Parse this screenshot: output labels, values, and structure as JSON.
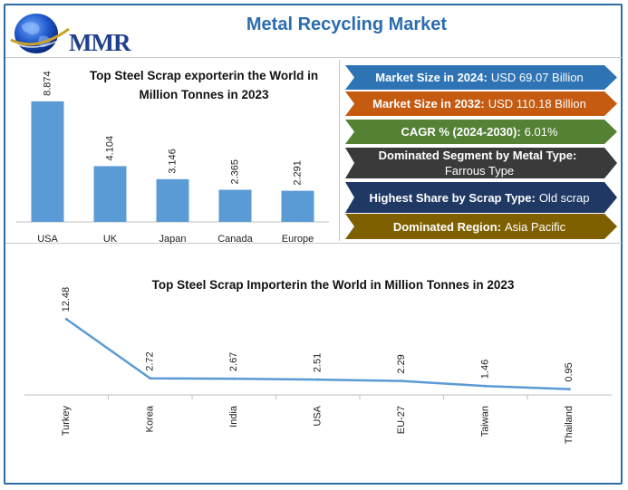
{
  "brand": {
    "logo_text": "MMR"
  },
  "title": "Metal Recycling Market",
  "stats": [
    {
      "label": "Market Size in 2024:",
      "value": "USD 69.07 Billion",
      "color": "#2e74b5"
    },
    {
      "label": "Market Size in 2032:",
      "value": "USD 110.18 Billion",
      "color": "#c55a11"
    },
    {
      "label": "CAGR % (2024-2030):",
      "value": "6.01%",
      "color": "#548235"
    },
    {
      "label": "Dominated Segment by Metal Type:",
      "value": "Farrous Type",
      "color": "#3a3a3a"
    },
    {
      "label": "Highest Share by Scrap Type:",
      "value": "Old scrap",
      "color": "#1f3864"
    },
    {
      "label": "Dominated Region:",
      "value": "Asia Pacific",
      "color": "#7f6000"
    }
  ],
  "chart_data": [
    {
      "type": "bar",
      "title_line1": "Top Steel Scrap exporterin the World in",
      "title_line2": "Million Tonnes in 2023",
      "categories": [
        "USA",
        "UK",
        "Japan",
        "Canada",
        "Europe"
      ],
      "values": [
        8.874,
        4.104,
        3.146,
        2.365,
        2.291
      ],
      "value_labels": [
        "8.874",
        "4.104",
        "3.146",
        "2.365",
        "2.291"
      ],
      "color": "#5b9bd5",
      "ylim": [
        0,
        10
      ],
      "grid": false,
      "xlabel": "",
      "ylabel": ""
    },
    {
      "type": "line",
      "title": "Top Steel Scrap Importerin the World in Million Tonnes in 2023",
      "categories": [
        "Turkey",
        "Korea",
        "India",
        "USA",
        "EU-27",
        "Taiwan",
        "Thailand"
      ],
      "values": [
        12.48,
        2.72,
        2.67,
        2.51,
        2.29,
        1.46,
        0.95
      ],
      "value_labels": [
        "12.48",
        "2.72",
        "2.67",
        "2.51",
        "2.29",
        "1.46",
        "0.95"
      ],
      "color": "#5b9bd5",
      "ylim": [
        0,
        14
      ],
      "grid": false,
      "xlabel": "",
      "ylabel": ""
    }
  ]
}
